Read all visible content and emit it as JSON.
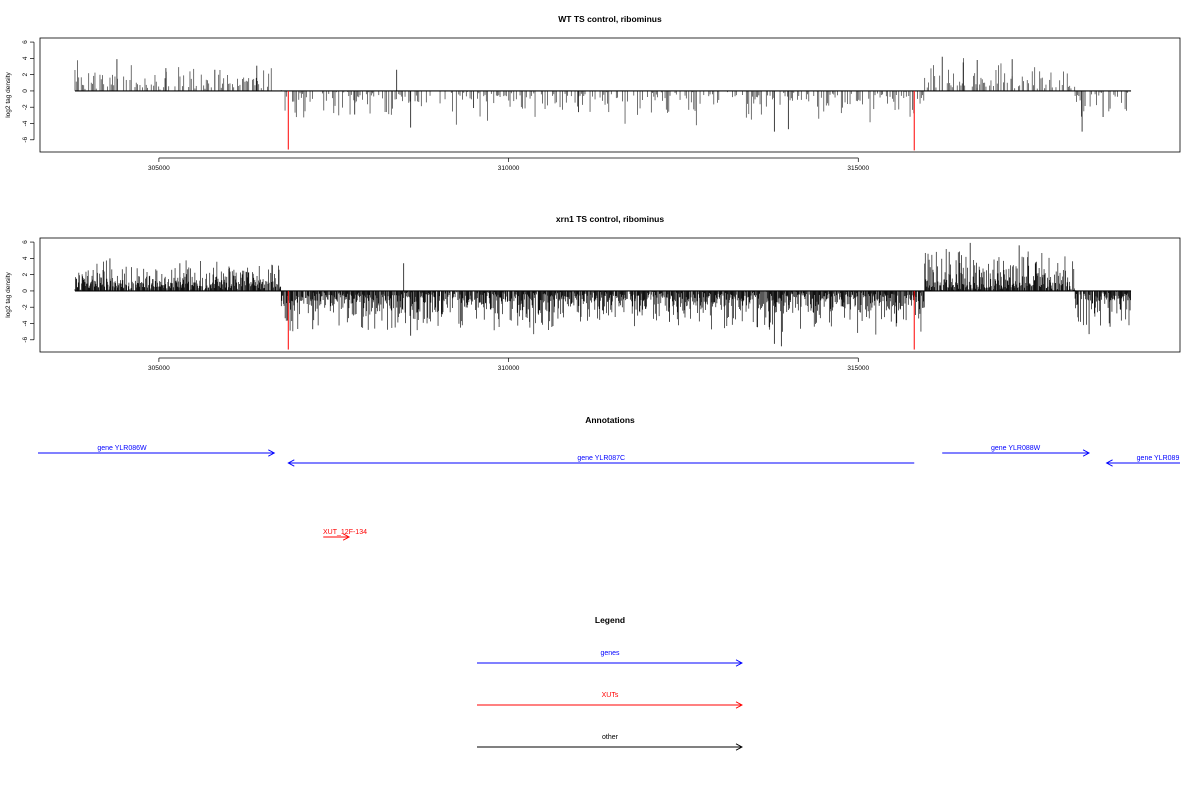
{
  "panels": [
    {
      "title": "WT TS control, ribominus",
      "ylabel": "log2 tag density",
      "yticks": [
        "-6",
        "-4",
        "-2",
        "0",
        "2",
        "4",
        "6"
      ],
      "xticks": [
        "305000",
        "310000",
        "315000"
      ],
      "ylim": [
        -7.5,
        6.5
      ],
      "xlim": [
        303300,
        319600
      ],
      "dense": false,
      "seed": 7,
      "red_marks": [
        {
          "x": 306850,
          "y": -7.2
        },
        {
          "x": 315800,
          "y": -7.3
        }
      ]
    },
    {
      "title": "xrn1 TS control, ribominus",
      "ylabel": "log2 tag density",
      "yticks": [
        "-6",
        "-4",
        "-2",
        "0",
        "2",
        "4",
        "6"
      ],
      "xticks": [
        "305000",
        "310000",
        "315000"
      ],
      "ylim": [
        -7.5,
        6.5
      ],
      "xlim": [
        303300,
        319600
      ],
      "dense": true,
      "seed": 19,
      "red_marks": [
        {
          "x": 306850,
          "y": -7.2
        },
        {
          "x": 315800,
          "y": -7.2
        }
      ]
    }
  ],
  "annotations": {
    "title": "Annotations",
    "features": [
      {
        "label": "gene YLR086W",
        "kind": "gene",
        "strand": "+",
        "start": 303300,
        "end": 306650,
        "row": 0
      },
      {
        "label": "gene YLR087C",
        "kind": "gene",
        "strand": "-",
        "start": 306850,
        "end": 315800,
        "row": 1
      },
      {
        "label": "gene YLR088W",
        "kind": "gene",
        "strand": "+",
        "start": 316200,
        "end": 318300,
        "row": 0
      },
      {
        "label": "gene YLR089",
        "kind": "gene",
        "strand": "-",
        "start": 318550,
        "end": 319600,
        "row": 1
      },
      {
        "label": "XUT_12F-134",
        "kind": "xut",
        "strand": "+",
        "start": 307350,
        "end": 307720,
        "row": 2
      }
    ]
  },
  "legend": {
    "title": "Legend",
    "items": [
      {
        "label": "genes",
        "color": "#0000ff"
      },
      {
        "label": "XUTs",
        "color": "#ff0000"
      },
      {
        "label": "other",
        "color": "#000000"
      }
    ]
  },
  "chart_data": [
    {
      "type": "bar",
      "title": "WT TS control, ribominus",
      "ylabel": "log2 tag density",
      "xlim": [
        303300,
        319600
      ],
      "ylim": [
        -7.5,
        6.5
      ],
      "segments": [
        {
          "start": 303800,
          "end": 306750,
          "strand": "+",
          "typical_max": 4
        },
        {
          "start": 306750,
          "end": 315950,
          "strand": "-",
          "typical_min": -5
        },
        {
          "start": 315950,
          "end": 318100,
          "strand": "+",
          "typical_max": 4.5
        },
        {
          "start": 318100,
          "end": 318900,
          "strand": "-",
          "typical_min": -5
        }
      ],
      "red_spikes": [
        {
          "x": 306850,
          "y": -7.2
        },
        {
          "x": 315800,
          "y": -7.3
        }
      ],
      "series": [
        {
          "x": [
            304400,
            305100,
            305800,
            306400,
            307800,
            308400,
            308600,
            309500,
            311000,
            313800,
            314000,
            316200,
            316500,
            316700,
            317200,
            318200,
            318500
          ],
          "y": [
            3.9,
            2.8,
            2.6,
            3.1,
            -2.9,
            2.6,
            -4.5,
            -2.1,
            -2.6,
            -5.0,
            -4.7,
            4.2,
            3.5,
            3.8,
            3.9,
            -5.0,
            -3.2
          ]
        }
      ]
    },
    {
      "type": "bar",
      "title": "xrn1 TS control, ribominus",
      "ylabel": "log2 tag density",
      "xlim": [
        303300,
        319600
      ],
      "ylim": [
        -7.5,
        6.5
      ],
      "segments": [
        {
          "start": 303800,
          "end": 306750,
          "strand": "+",
          "typical_max": 4.2
        },
        {
          "start": 306750,
          "end": 315950,
          "strand": "-",
          "typical_min": -6
        },
        {
          "start": 315950,
          "end": 318100,
          "strand": "+",
          "typical_max": 6
        },
        {
          "start": 318100,
          "end": 318900,
          "strand": "-",
          "typical_min": -5.5
        }
      ],
      "red_spikes": [
        {
          "x": 306850,
          "y": -7.2
        },
        {
          "x": 315800,
          "y": -7.2
        }
      ],
      "series": [
        {
          "x": [
            304300,
            305300,
            306000,
            307200,
            308500,
            308600,
            310300,
            312300,
            313800,
            313900,
            316300,
            316600,
            317300,
            318300,
            318600
          ],
          "y": [
            4.0,
            3.4,
            2.7,
            -4.7,
            3.4,
            -5.5,
            -3.8,
            -3.8,
            -6.5,
            -6.8,
            4.8,
            5.9,
            5.6,
            -5.3,
            -4.4
          ]
        }
      ]
    }
  ]
}
